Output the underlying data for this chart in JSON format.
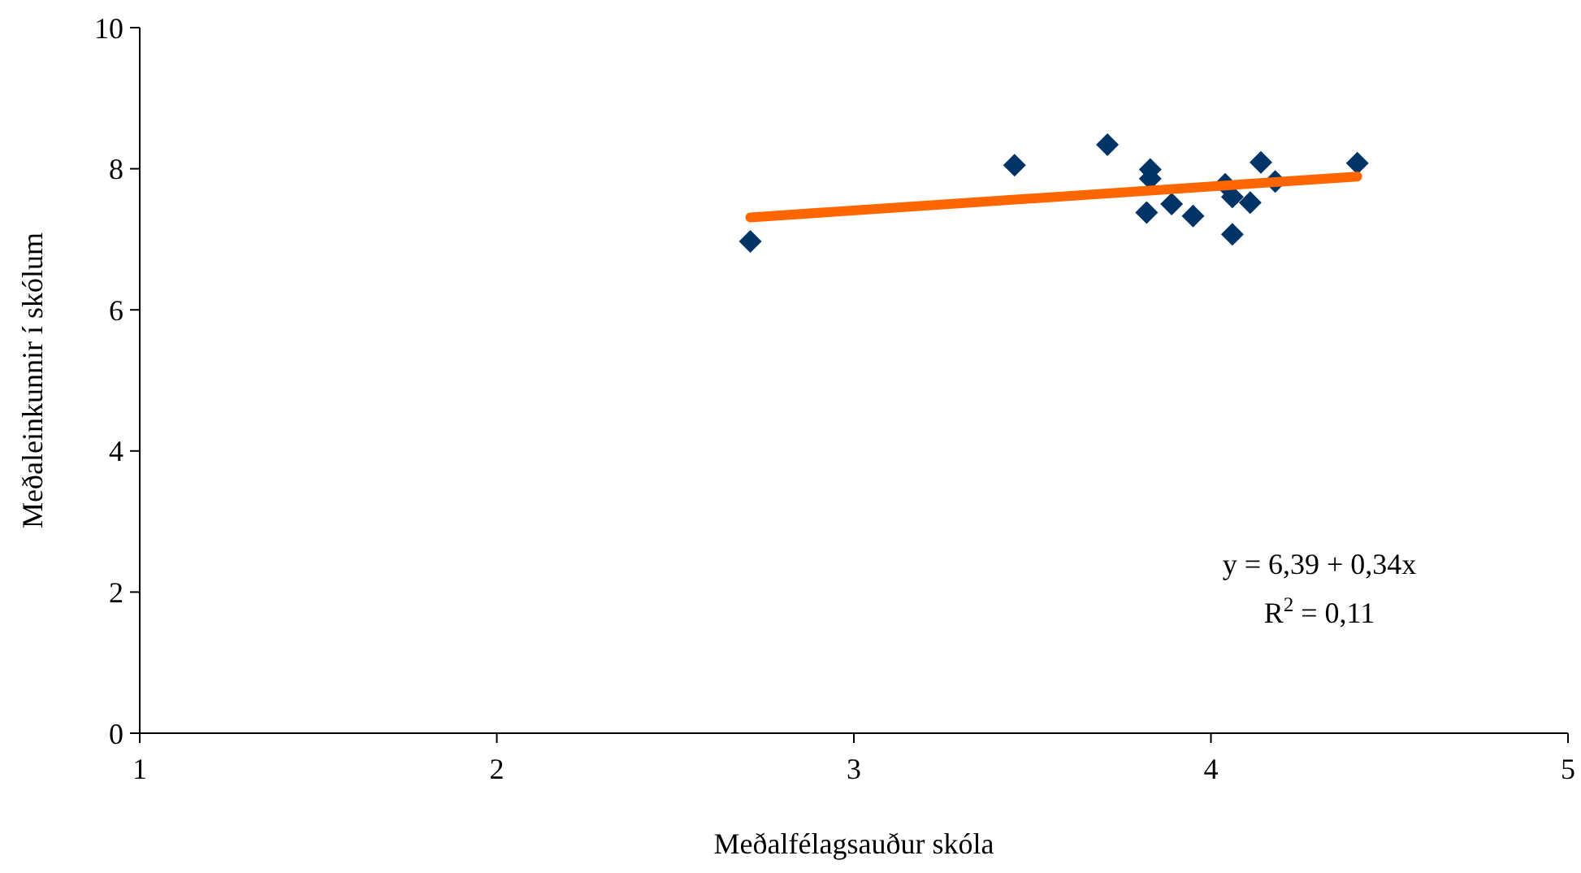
{
  "chart_data": {
    "type": "scatter",
    "xlabel": "Meðalfélagsauður skóla",
    "ylabel": "Meðaleinkunnir í skólum",
    "xlim": [
      1,
      5
    ],
    "xticks": [
      1,
      2,
      3,
      4,
      5
    ],
    "ylim": [
      0,
      10
    ],
    "yticks": [
      0,
      2,
      4,
      6,
      8,
      10
    ],
    "grid": false,
    "marker": "diamond",
    "series": [
      {
        "color": "#003366",
        "x": [
          2.71,
          3.45,
          3.71,
          3.83,
          3.83,
          3.82,
          3.89,
          3.95,
          4.04,
          4.06,
          4.06,
          4.11,
          4.14,
          4.18,
          4.41
        ],
        "values": [
          6.97,
          8.05,
          8.34,
          7.99,
          7.86,
          7.38,
          7.5,
          7.33,
          7.78,
          7.6,
          7.07,
          7.52,
          8.09,
          7.82,
          8.08
        ]
      },
      {
        "type": "line",
        "color": "#ff6600",
        "marker": "none",
        "line_style": "solid",
        "x": [
          2.71,
          4.41
        ],
        "values": [
          7.31,
          7.89
        ]
      }
    ],
    "annotations": [
      "y = 6,39 + 0,34x",
      "R$^{2}$ = 0,11"
    ]
  }
}
